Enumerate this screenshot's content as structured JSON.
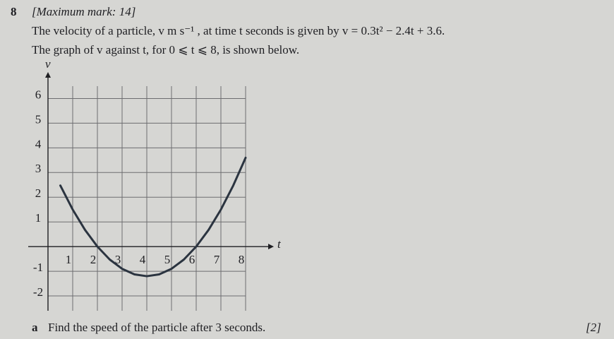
{
  "question": {
    "number": "8",
    "max_mark": "[Maximum mark: 14]",
    "lines": [
      "The velocity of a particle, v m s⁻¹ , at time t seconds is given by v = 0.3t² − 2.4t + 3.6.",
      "The graph of v against t, for 0 ⩽ t ⩽ 8, is shown below."
    ]
  },
  "chart_data": {
    "type": "line",
    "x_label": "t",
    "y_label": "v",
    "x": [
      0.5,
      1,
      1.5,
      2,
      2.5,
      3,
      3.5,
      4,
      4.5,
      5,
      5.5,
      6,
      6.5,
      7,
      7.5,
      8
    ],
    "series": [
      {
        "color": "#2b3440",
        "values": [
          2.475,
          1.5,
          0.675,
          0,
          -0.525,
          -0.9,
          -1.125,
          -1.2,
          -1.125,
          -0.9,
          -0.525,
          0,
          0.675,
          1.5,
          2.475,
          3.6
        ]
      }
    ],
    "xlim": [
      0,
      8
    ],
    "ylim": [
      -2.6,
      6.5
    ],
    "xticks": [
      1,
      2,
      3,
      4,
      5,
      6,
      7,
      8
    ],
    "yticks": [
      -2,
      -1,
      1,
      2,
      3,
      4,
      5,
      6
    ],
    "grid": true
  },
  "part": {
    "label": "a",
    "text": "Find the speed of the particle after 3 seconds.",
    "marks": "[2]"
  }
}
